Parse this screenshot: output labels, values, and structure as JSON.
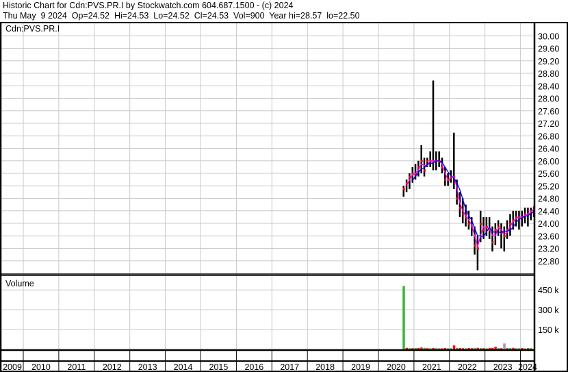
{
  "header": {
    "title": "Historic Chart for Cdn:PVS.PR.I by Stockwatch.com 604.687.1500 - (c) 2024",
    "quote_line": "Thu May  9 2024  Op=24.52  Hi=24.53  Lo=24.52  Cl=24.53  Vol=900  Year hi=28.57  lo=22.50"
  },
  "chart_data": {
    "type": "line",
    "symbol_label": "Cdn:PVS.PR.I",
    "volume_label": "Volume",
    "grid": true,
    "price_axis": {
      "position": "right",
      "ylim": [
        22.4,
        30.4
      ],
      "tick_labels": [
        "30.00",
        "29.60",
        "29.20",
        "28.80",
        "28.40",
        "28.00",
        "27.60",
        "27.20",
        "26.80",
        "26.40",
        "26.00",
        "25.60",
        "25.20",
        "24.80",
        "24.40",
        "24.00",
        "23.60",
        "23.20",
        "22.80"
      ]
    },
    "volume_axis": {
      "position": "right",
      "ylim": [
        0,
        560000
      ],
      "ticks": [
        150000,
        300000,
        450000
      ],
      "tick_labels": [
        "150 k",
        "300 k",
        "450 k"
      ]
    },
    "x_axis": {
      "xlim": [
        "2009",
        "2024"
      ],
      "year_labels": [
        "2009",
        "2010",
        "2011",
        "2012",
        "2013",
        "2014",
        "2015",
        "2016",
        "2017",
        "2018",
        "2019",
        "2020",
        "2021",
        "2022",
        "2023",
        "2024"
      ]
    },
    "colors": {
      "price_bar": "#000000",
      "close_mark": "#ff0000",
      "ma_short": "#ff00ff",
      "ma_long": "#0000ff",
      "vol_up": "#3cb43c",
      "vol_down": "#ff0000",
      "vol_flat": "#a0a0a0",
      "grid": "#c8c8c8"
    },
    "price_series": {
      "columns": [
        "month",
        "high",
        "low",
        "close"
      ],
      "rows": [
        [
          "2020-09",
          25.2,
          24.85,
          25.1
        ],
        [
          "2020-10",
          25.4,
          25.0,
          25.3
        ],
        [
          "2020-11",
          25.6,
          25.1,
          25.5
        ],
        [
          "2020-12",
          25.8,
          25.3,
          25.6
        ],
        [
          "2021-01",
          25.9,
          25.4,
          25.6
        ],
        [
          "2021-02",
          26.0,
          25.5,
          25.8
        ],
        [
          "2021-03",
          26.5,
          25.6,
          26.0
        ],
        [
          "2021-04",
          26.1,
          25.5,
          25.7
        ],
        [
          "2021-05",
          26.1,
          25.8,
          26.0
        ],
        [
          "2021-06",
          26.3,
          25.8,
          26.0
        ],
        [
          "2021-07",
          28.57,
          25.7,
          26.0
        ],
        [
          "2021-08",
          26.3,
          25.7,
          26.0
        ],
        [
          "2021-09",
          26.3,
          25.8,
          26.0
        ],
        [
          "2021-10",
          26.1,
          25.6,
          25.8
        ],
        [
          "2021-11",
          25.8,
          25.2,
          25.4
        ],
        [
          "2021-12",
          25.6,
          25.2,
          25.4
        ],
        [
          "2022-01",
          25.7,
          25.3,
          25.5
        ],
        [
          "2022-02",
          26.9,
          25.1,
          25.5
        ],
        [
          "2022-03",
          25.4,
          24.6,
          24.8
        ],
        [
          "2022-04",
          25.0,
          24.2,
          24.5
        ],
        [
          "2022-05",
          24.8,
          24.0,
          24.3
        ],
        [
          "2022-06",
          24.6,
          23.9,
          24.2
        ],
        [
          "2022-07",
          24.4,
          23.8,
          24.0
        ],
        [
          "2022-08",
          24.2,
          23.6,
          23.9
        ],
        [
          "2022-09",
          23.9,
          23.0,
          23.3
        ],
        [
          "2022-10",
          23.6,
          22.5,
          23.2
        ],
        [
          "2022-11",
          24.4,
          23.4,
          24.0
        ],
        [
          "2022-12",
          24.2,
          23.5,
          23.8
        ],
        [
          "2023-01",
          24.2,
          23.6,
          23.9
        ],
        [
          "2023-02",
          24.2,
          23.5,
          23.8
        ],
        [
          "2023-03",
          23.9,
          23.1,
          23.4
        ],
        [
          "2023-04",
          24.0,
          23.3,
          23.8
        ],
        [
          "2023-05",
          24.1,
          23.6,
          23.9
        ],
        [
          "2023-06",
          24.0,
          23.2,
          23.7
        ],
        [
          "2023-07",
          23.9,
          23.1,
          23.6
        ],
        [
          "2023-08",
          24.1,
          23.5,
          23.8
        ],
        [
          "2023-09",
          24.3,
          23.6,
          24.0
        ],
        [
          "2023-10",
          24.4,
          23.8,
          24.1
        ],
        [
          "2023-11",
          24.4,
          23.9,
          24.2
        ],
        [
          "2023-12",
          24.4,
          23.8,
          24.2
        ],
        [
          "2024-01",
          24.4,
          23.9,
          24.2
        ],
        [
          "2024-02",
          24.5,
          24.0,
          24.3
        ],
        [
          "2024-03",
          24.5,
          23.9,
          24.3
        ],
        [
          "2024-04",
          24.5,
          24.1,
          24.4
        ],
        [
          "2024-05",
          24.53,
          24.2,
          24.53
        ]
      ]
    },
    "volume_series": {
      "columns": [
        "month",
        "volume",
        "direction"
      ],
      "rows": [
        [
          "2020-09",
          480000,
          "up"
        ],
        [
          "2020-10",
          12000,
          "down"
        ],
        [
          "2020-11",
          10000,
          "up"
        ],
        [
          "2020-12",
          9000,
          "down"
        ],
        [
          "2021-01",
          11000,
          "up"
        ],
        [
          "2021-02",
          10000,
          "down"
        ],
        [
          "2021-03",
          14000,
          "down"
        ],
        [
          "2021-04",
          12000,
          "up"
        ],
        [
          "2021-05",
          9000,
          "down"
        ],
        [
          "2021-06",
          8000,
          "up"
        ],
        [
          "2021-07",
          10000,
          "down"
        ],
        [
          "2021-08",
          12000,
          "flat"
        ],
        [
          "2021-09",
          9000,
          "up"
        ],
        [
          "2021-10",
          8000,
          "down"
        ],
        [
          "2021-11",
          10000,
          "down"
        ],
        [
          "2021-12",
          9000,
          "up"
        ],
        [
          "2022-01",
          11000,
          "flat"
        ],
        [
          "2022-02",
          30000,
          "down"
        ],
        [
          "2022-03",
          12000,
          "up"
        ],
        [
          "2022-04",
          10000,
          "down"
        ],
        [
          "2022-05",
          9000,
          "down"
        ],
        [
          "2022-06",
          8000,
          "up"
        ],
        [
          "2022-07",
          10000,
          "down"
        ],
        [
          "2022-08",
          9000,
          "down"
        ],
        [
          "2022-09",
          11000,
          "up"
        ],
        [
          "2022-10",
          12000,
          "down"
        ],
        [
          "2022-11",
          10000,
          "up"
        ],
        [
          "2022-12",
          9000,
          "down"
        ],
        [
          "2023-01",
          8000,
          "up"
        ],
        [
          "2023-02",
          10000,
          "down"
        ],
        [
          "2023-03",
          12000,
          "down"
        ],
        [
          "2023-04",
          20000,
          "down"
        ],
        [
          "2023-05",
          11000,
          "up"
        ],
        [
          "2023-06",
          9000,
          "down"
        ],
        [
          "2023-07",
          45000,
          "flat"
        ],
        [
          "2023-08",
          9000,
          "down"
        ],
        [
          "2023-09",
          10000,
          "up"
        ],
        [
          "2023-10",
          12000,
          "down"
        ],
        [
          "2023-11",
          9000,
          "up"
        ],
        [
          "2023-12",
          11000,
          "flat"
        ],
        [
          "2024-01",
          10000,
          "down"
        ],
        [
          "2024-02",
          8000,
          "up"
        ],
        [
          "2024-03",
          9000,
          "down"
        ],
        [
          "2024-04",
          10000,
          "up"
        ],
        [
          "2024-05",
          900,
          "up"
        ]
      ]
    }
  }
}
